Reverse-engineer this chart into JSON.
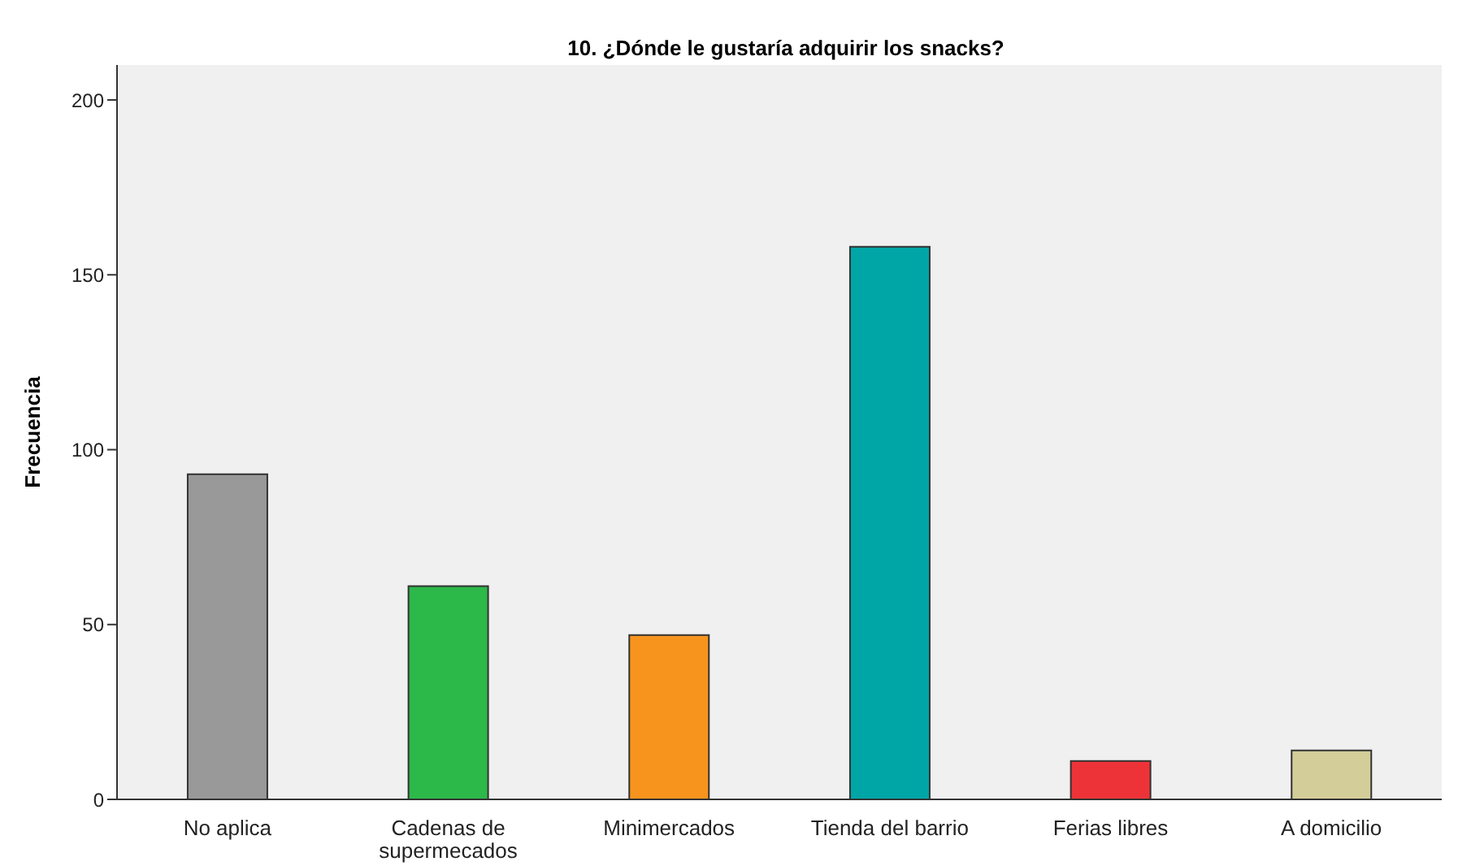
{
  "chart_data": {
    "type": "bar",
    "title": "10. ¿Dónde le gustaría adquirir los snacks?",
    "ylabel": "Frecuencia",
    "categories": [
      "No aplica",
      "Cadenas de supermecados",
      "Minimercados",
      "Tienda del barrio",
      "Ferias libres",
      "A domicilio"
    ],
    "values": [
      93,
      61,
      47,
      158,
      11,
      14
    ],
    "colors": [
      "#999999",
      "#2db84a",
      "#f7941d",
      "#00a6a6",
      "#ee3338",
      "#d3cd99"
    ],
    "ylim": [
      0,
      210
    ],
    "yticks": [
      0,
      50,
      100,
      150,
      200
    ],
    "grid": false
  }
}
